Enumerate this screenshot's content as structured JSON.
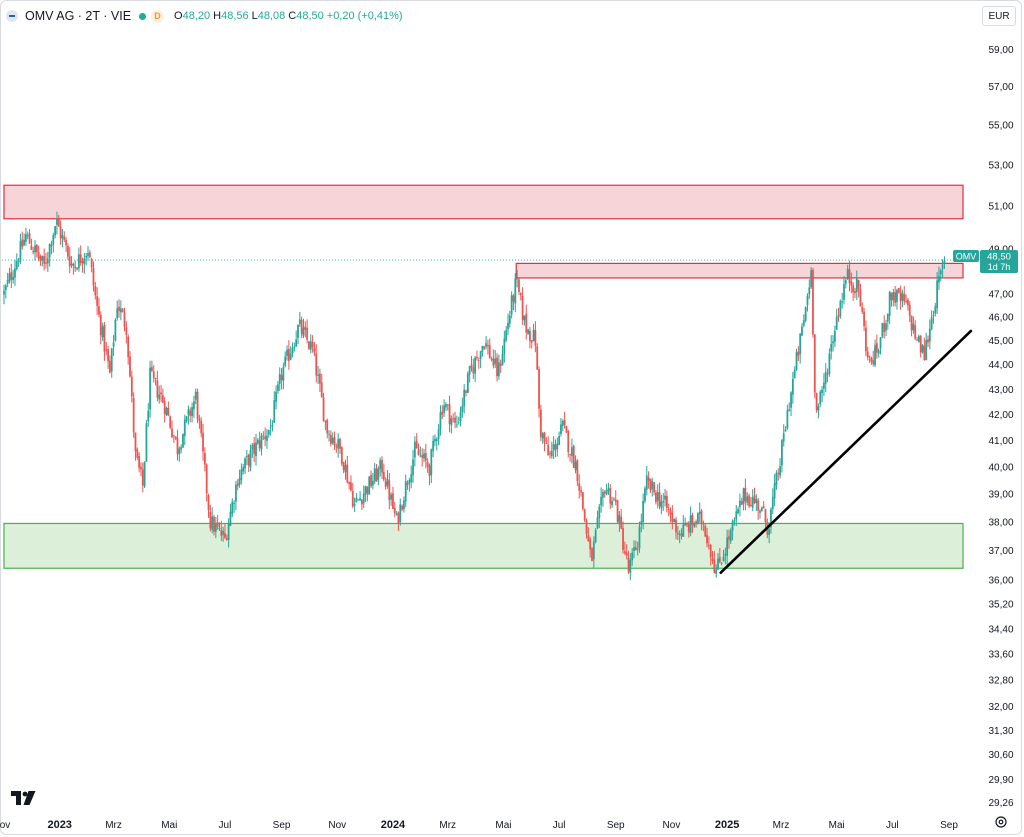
{
  "header": {
    "symbol": "OMV AG · 2T · VIE",
    "status_badge": "D",
    "open_label": "O",
    "open_value": "48,20",
    "high_label": "H",
    "high_value": "48,56",
    "low_label": "L",
    "low_value": "48,08",
    "close_label": "C",
    "close_value": "48,50",
    "change": "+0,20 (+0,41%)"
  },
  "currency": "EUR",
  "last_price_tag": {
    "ticker": "OMV",
    "price": "48,50",
    "countdown": "1d 7h"
  },
  "chart_data": {
    "type": "candlestick",
    "y_axis": {
      "scale": "log",
      "range": [
        28.9,
        60.2
      ],
      "ticks": [
        "59,00",
        "57,00",
        "55,00",
        "53,00",
        "51,00",
        "49,00",
        "47,00",
        "46,00",
        "45,00",
        "44,00",
        "43,00",
        "42,00",
        "41,00",
        "40,00",
        "39,00",
        "38,00",
        "37,00",
        "36,00",
        "35,20",
        "34,40",
        "33,60",
        "32,80",
        "32,00",
        "31,30",
        "30,60",
        "29,90",
        "29,26"
      ]
    },
    "x_axis": {
      "labels": [
        {
          "label": "ov",
          "date": "2022-11-01"
        },
        {
          "label": "2023",
          "date": "2023-01-01",
          "bold": true
        },
        {
          "label": "Mrz",
          "date": "2023-03-01"
        },
        {
          "label": "Mai",
          "date": "2023-05-01"
        },
        {
          "label": "Jul",
          "date": "2023-07-01"
        },
        {
          "label": "Sep",
          "date": "2023-09-01"
        },
        {
          "label": "Nov",
          "date": "2023-11-01"
        },
        {
          "label": "2024",
          "date": "2024-01-01",
          "bold": true
        },
        {
          "label": "Mrz",
          "date": "2024-03-01"
        },
        {
          "label": "Mai",
          "date": "2024-05-01"
        },
        {
          "label": "Jul",
          "date": "2024-07-01"
        },
        {
          "label": "Sep",
          "date": "2024-09-01"
        },
        {
          "label": "Nov",
          "date": "2024-11-01"
        },
        {
          "label": "2025",
          "date": "2025-01-01",
          "bold": true
        },
        {
          "label": "Mrz",
          "date": "2025-03-01"
        },
        {
          "label": "Mai",
          "date": "2025-05-01"
        },
        {
          "label": "Jul",
          "date": "2025-07-01"
        },
        {
          "label": "Sep",
          "date": "2025-09-01"
        }
      ]
    },
    "anchors": [
      [
        "2022-11-01",
        47.0
      ],
      [
        "2022-11-25",
        49.6
      ],
      [
        "2022-12-15",
        48.2
      ],
      [
        "2022-12-28",
        50.3
      ],
      [
        "2023-01-15",
        48.2
      ],
      [
        "2023-02-01",
        49.0
      ],
      [
        "2023-02-10",
        46.6
      ],
      [
        "2023-02-25",
        43.6
      ],
      [
        "2023-03-05",
        46.6
      ],
      [
        "2023-03-15",
        45.6
      ],
      [
        "2023-03-25",
        40.4
      ],
      [
        "2023-04-02",
        39.3
      ],
      [
        "2023-04-10",
        43.5
      ],
      [
        "2023-04-25",
        42.5
      ],
      [
        "2023-05-10",
        40.7
      ],
      [
        "2023-05-30",
        42.7
      ],
      [
        "2023-06-15",
        38.0
      ],
      [
        "2023-07-01",
        37.4
      ],
      [
        "2023-07-15",
        39.6
      ],
      [
        "2023-08-01",
        40.6
      ],
      [
        "2023-08-20",
        41.5
      ],
      [
        "2023-09-01",
        43.6
      ],
      [
        "2023-09-20",
        45.6
      ],
      [
        "2023-10-05",
        44.6
      ],
      [
        "2023-10-20",
        41.5
      ],
      [
        "2023-11-05",
        40.6
      ],
      [
        "2023-11-20",
        38.6
      ],
      [
        "2023-12-05",
        39.3
      ],
      [
        "2023-12-20",
        40.0
      ],
      [
        "2024-01-05",
        38.0
      ],
      [
        "2024-01-25",
        40.6
      ],
      [
        "2024-02-10",
        40.0
      ],
      [
        "2024-02-25",
        42.5
      ],
      [
        "2024-03-10",
        41.5
      ],
      [
        "2024-03-25",
        43.6
      ],
      [
        "2024-04-10",
        45.0
      ],
      [
        "2024-04-25",
        43.6
      ],
      [
        "2024-05-05",
        45.6
      ],
      [
        "2024-05-15",
        47.5
      ],
      [
        "2024-05-25",
        45.6
      ],
      [
        "2024-06-05",
        45.0
      ],
      [
        "2024-06-10",
        41.5
      ],
      [
        "2024-06-20",
        40.3
      ],
      [
        "2024-07-05",
        41.5
      ],
      [
        "2024-07-20",
        40.0
      ],
      [
        "2024-08-05",
        36.6
      ],
      [
        "2024-08-20",
        39.3
      ],
      [
        "2024-09-01",
        38.6
      ],
      [
        "2024-09-15",
        36.3
      ],
      [
        "2024-09-25",
        37.3
      ],
      [
        "2024-10-05",
        39.4
      ],
      [
        "2024-10-25",
        38.6
      ],
      [
        "2024-11-10",
        37.6
      ],
      [
        "2024-11-25",
        38.0
      ],
      [
        "2024-12-05",
        38.1
      ],
      [
        "2024-12-20",
        36.3
      ],
      [
        "2025-01-05",
        37.6
      ],
      [
        "2025-01-20",
        39.0
      ],
      [
        "2025-02-05",
        38.6
      ],
      [
        "2025-02-15",
        37.8
      ],
      [
        "2025-02-28",
        40.2
      ],
      [
        "2025-03-10",
        42.5
      ],
      [
        "2025-03-25",
        45.6
      ],
      [
        "2025-04-03",
        48.0
      ],
      [
        "2025-04-08",
        42.0
      ],
      [
        "2025-04-15",
        42.8
      ],
      [
        "2025-05-01",
        46.0
      ],
      [
        "2025-05-12",
        47.8
      ],
      [
        "2025-05-25",
        47.2
      ],
      [
        "2025-06-05",
        44.0
      ],
      [
        "2025-06-15",
        44.6
      ],
      [
        "2025-06-30",
        47.0
      ],
      [
        "2025-07-15",
        46.6
      ],
      [
        "2025-07-28",
        45.0
      ],
      [
        "2025-08-05",
        44.4
      ],
      [
        "2025-08-20",
        47.4
      ],
      [
        "2025-08-28",
        48.5
      ]
    ],
    "zones": [
      {
        "name": "resistance-zone-upper",
        "from": "2022-11-01",
        "to": "2025-09-20",
        "low": 50.4,
        "high": 52.0,
        "color": "#f7d4d8",
        "border": "#e03040"
      },
      {
        "name": "resistance-zone-lower",
        "from": "2024-05-15",
        "to": "2025-09-20",
        "low": 47.7,
        "high": 48.35,
        "color": "#f7d4d8",
        "border": "#e03040"
      },
      {
        "name": "support-zone",
        "from": "2022-11-01",
        "to": "2025-09-20",
        "low": 36.4,
        "high": 37.95,
        "color": "#dcefd9",
        "border": "#4caf50"
      }
    ],
    "trendline": {
      "from": [
        "2024-12-25",
        36.25
      ],
      "to": [
        "2025-09-25",
        45.4
      ],
      "color": "#000000"
    },
    "last_close": 48.5,
    "colors": {
      "up": "#26a69a",
      "down": "#ef5350",
      "tag_bg": "#26a69a"
    }
  }
}
